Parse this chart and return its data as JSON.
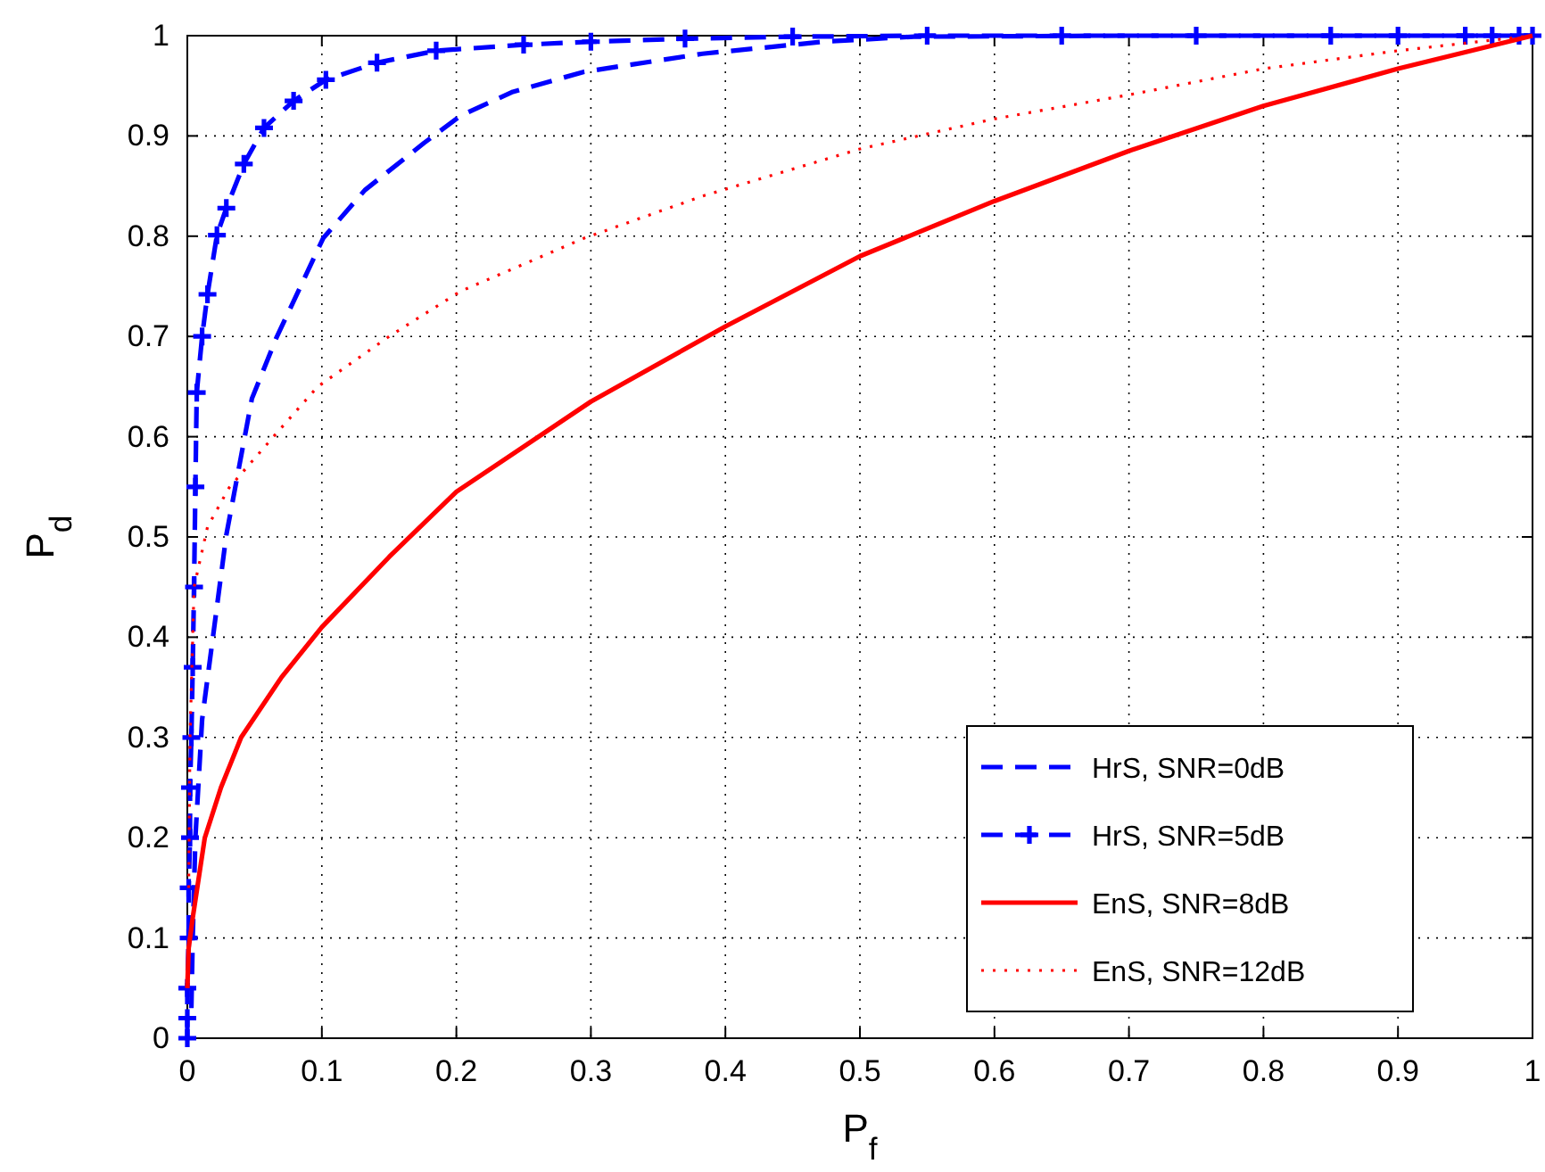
{
  "chart_data": {
    "type": "line",
    "xlabel": "P$_{f}$",
    "ylabel": "P$_{d}$",
    "xlim": [
      0,
      1
    ],
    "ylim": [
      0,
      1
    ],
    "xticks": [
      0,
      0.1,
      0.2,
      0.3,
      0.4,
      0.5,
      0.6,
      0.7,
      0.8,
      0.9,
      1
    ],
    "yticks": [
      0,
      0.1,
      0.2,
      0.3,
      0.4,
      0.5,
      0.6,
      0.7,
      0.8,
      0.9,
      1
    ],
    "grid": true,
    "legend": "bottom right",
    "series": [
      {
        "name": "HrS, SNR=0dB",
        "color": "#0000ff",
        "line_style": "dashed",
        "marker": "none",
        "x": [
          0.003,
          0.004,
          0.006,
          0.011,
          0.029,
          0.048,
          0.066,
          0.101,
          0.132,
          0.176,
          0.203,
          0.242,
          0.295,
          0.383,
          0.473,
          0.54,
          0.7,
          1
        ],
        "values": [
          0.03,
          0.1,
          0.2,
          0.318,
          0.502,
          0.638,
          0.698,
          0.798,
          0.846,
          0.893,
          0.92,
          0.944,
          0.964,
          0.982,
          0.994,
          0.999,
          1,
          1
        ]
      },
      {
        "name": "HrS, SNR=5dB",
        "color": "#0000ff",
        "line_style": "dashed",
        "marker": "cross",
        "x": [
          0,
          0,
          0,
          0.001,
          0.001,
          0.002,
          0.002,
          0.003,
          0.004,
          0.005,
          0.006,
          0.007,
          0.011,
          0.015,
          0.022,
          0.029,
          0.042,
          0.057,
          0.079,
          0.103,
          0.141,
          0.185,
          0.25,
          0.3,
          0.37,
          0.45,
          0.55,
          0.65,
          0.75,
          0.85,
          0.9,
          0.95,
          0.97,
          0.99,
          1
        ],
        "values": [
          0,
          0.02,
          0.05,
          0.1,
          0.15,
          0.2,
          0.25,
          0.3,
          0.37,
          0.45,
          0.55,
          0.644,
          0.7,
          0.742,
          0.801,
          0.828,
          0.872,
          0.908,
          0.935,
          0.956,
          0.973,
          0.985,
          0.991,
          0.994,
          0.997,
          0.999,
          1,
          1,
          1,
          1,
          1,
          1,
          1,
          1,
          1
        ]
      },
      {
        "name": "EnS, SNR=8dB",
        "color": "#ff0000",
        "line_style": "solid",
        "marker": "none",
        "x": [
          0,
          0.001,
          0.004,
          0.013,
          0.025,
          0.04,
          0.07,
          0.1,
          0.15,
          0.2,
          0.3,
          0.4,
          0.5,
          0.6,
          0.7,
          0.8,
          0.9,
          1
        ],
        "values": [
          0.05,
          0.09,
          0.12,
          0.2,
          0.25,
          0.3,
          0.36,
          0.41,
          0.48,
          0.545,
          0.635,
          0.71,
          0.78,
          0.835,
          0.885,
          0.93,
          0.967,
          1
        ]
      },
      {
        "name": "EnS, SNR=12dB",
        "color": "#ff0000",
        "line_style": "dotted",
        "marker": "none",
        "x": [
          0.001,
          0.002,
          0.005,
          0.015,
          0.031,
          0.066,
          0.097,
          0.15,
          0.203,
          0.295,
          0.383,
          0.5,
          0.6,
          0.7,
          0.8,
          0.9,
          1
        ],
        "values": [
          0.15,
          0.3,
          0.45,
          0.51,
          0.549,
          0.603,
          0.65,
          0.7,
          0.745,
          0.798,
          0.84,
          0.887,
          0.917,
          0.941,
          0.967,
          0.985,
          1
        ]
      }
    ]
  }
}
